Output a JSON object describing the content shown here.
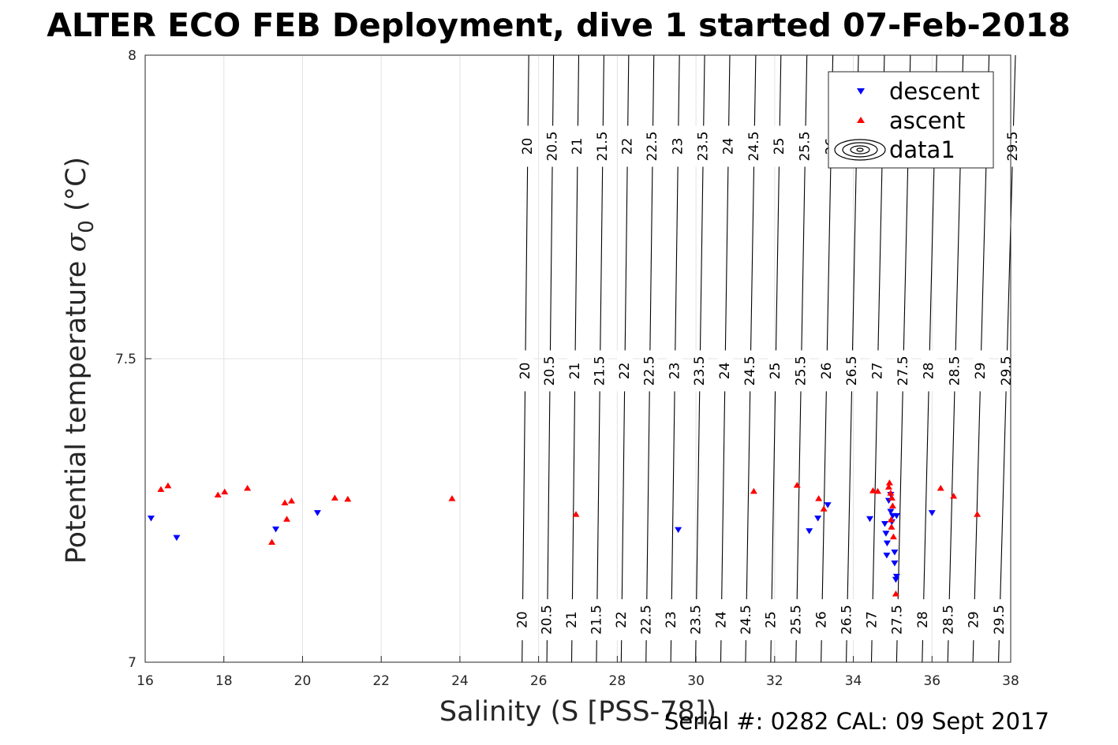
{
  "title": "ALTER ECO FEB Deployment, dive 1 started 07-Feb-2018",
  "footer": "Serial #: 0282  CAL: 09 Sept 2017",
  "chart_data": {
    "type": "scatter",
    "xlabel": "Salinity (S [PSS-78])",
    "ylabel_prefix": "Potential temperature ",
    "ylabel_sigma": "σ",
    "ylabel_sub": "0",
    "ylabel_suffix": " (°C)",
    "xlim": [
      16,
      38
    ],
    "ylim": [
      7,
      8
    ],
    "xticks": [
      "16",
      "18",
      "20",
      "22",
      "24",
      "26",
      "28",
      "30",
      "32",
      "34",
      "36",
      "38"
    ],
    "yticks": [
      "7",
      "7.5",
      "8"
    ],
    "grid": true,
    "legend": {
      "location": "top-right",
      "entries": [
        "descent",
        "ascent",
        "data1"
      ]
    },
    "colors": {
      "descent": "#0000ff",
      "ascent": "#ff0000",
      "contour": "#000000"
    },
    "contours": {
      "levels": [
        "20",
        "20.5",
        "21",
        "21.5",
        "22",
        "22.5",
        "23",
        "23.5",
        "24",
        "24.5",
        "25",
        "25.5",
        "26",
        "26.5",
        "27",
        "27.5",
        "28",
        "28.5",
        "29",
        "29.5"
      ],
      "salinity_at_top": [
        25.75,
        26.38,
        27.02,
        27.66,
        28.29,
        28.93,
        29.58,
        30.22,
        30.86,
        31.52,
        32.16,
        32.82,
        33.48,
        34.13,
        34.79,
        35.45,
        36.12,
        36.79,
        37.45,
        38.12
      ],
      "salinity_at_bottom": [
        25.58,
        26.21,
        26.84,
        27.47,
        28.1,
        28.73,
        29.36,
        29.99,
        30.63,
        31.26,
        31.9,
        32.54,
        33.18,
        33.82,
        34.46,
        35.1,
        35.75,
        36.4,
        37.04,
        37.69
      ],
      "label_temps": [
        7.85,
        7.48,
        7.07
      ]
    },
    "series": [
      {
        "name": "descent",
        "marker": "triangle-down",
        "x": [
          16.15,
          16.8,
          19.32,
          20.38,
          29.55,
          32.88,
          33.1,
          33.35,
          34.42,
          34.8,
          34.83,
          34.86,
          34.85,
          34.9,
          34.95,
          35.0,
          35.05,
          35.1,
          35.08,
          35.1,
          34.95,
          34.98,
          35.05,
          36.0
        ],
        "y": [
          7.237,
          7.205,
          7.219,
          7.246,
          7.218,
          7.216,
          7.237,
          7.259,
          7.236,
          7.228,
          7.212,
          7.196,
          7.176,
          7.266,
          7.276,
          7.241,
          7.163,
          7.141,
          7.136,
          7.241,
          7.248,
          7.231,
          7.181,
          7.246
        ]
      },
      {
        "name": "ascent",
        "marker": "triangle-up",
        "x": [
          16.4,
          16.58,
          17.85,
          18.02,
          18.6,
          19.22,
          19.55,
          19.6,
          19.72,
          20.82,
          21.15,
          23.8,
          26.95,
          31.47,
          32.57,
          33.12,
          33.25,
          34.5,
          34.62,
          34.9,
          34.92,
          34.95,
          34.98,
          35.0,
          34.96,
          34.97,
          35.02,
          35.08,
          36.22,
          36.55,
          37.15
        ],
        "y": [
          7.285,
          7.291,
          7.276,
          7.281,
          7.287,
          7.198,
          7.263,
          7.236,
          7.266,
          7.271,
          7.269,
          7.27,
          7.244,
          7.282,
          7.292,
          7.27,
          7.253,
          7.283,
          7.282,
          7.289,
          7.296,
          7.279,
          7.271,
          7.258,
          7.235,
          7.223,
          7.207,
          7.113,
          7.287,
          7.274,
          7.244
        ]
      }
    ]
  }
}
